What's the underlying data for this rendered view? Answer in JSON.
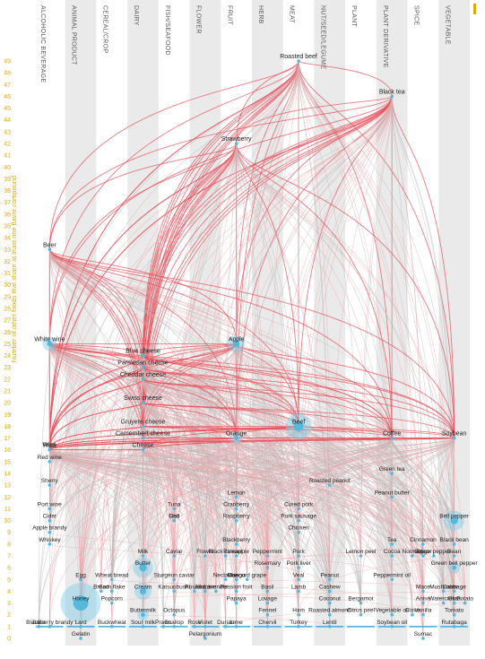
{
  "categories": [
    "ALCOHOLIC BEVERAGE",
    "ANIMAL PRODUCT",
    "CEREAL/CROP",
    "DAIRY",
    "FISH/SEAFOOD",
    "FLOWER",
    "FRUIT",
    "HERB",
    "MEAT",
    "NUT/SEED/LEGUME",
    "PLANT",
    "PLANT DERIVATIVE",
    "SPICE",
    "VEGETABLE"
  ],
  "y_axis_title": "Number of other foods that share at least one flavor compound",
  "y_ticks": [
    0,
    1,
    2,
    3,
    4,
    5,
    6,
    7,
    8,
    9,
    10,
    11,
    12,
    13,
    14,
    15,
    16,
    17,
    18,
    19,
    20,
    21,
    22,
    23,
    24,
    25,
    26,
    27,
    28,
    29,
    30,
    31,
    32,
    33,
    34,
    35,
    36,
    37,
    38,
    39,
    40,
    41,
    42,
    43,
    44,
    45,
    46,
    47,
    48,
    49
  ],
  "chart_data": {
    "type": "network",
    "y_range": [
      0,
      49
    ],
    "nodes": [
      {
        "name": "Roasted beef",
        "category": "MEAT",
        "value": 49,
        "size": 2
      },
      {
        "name": "Black tea",
        "category": "PLANT DERIVATIVE",
        "value": 46,
        "size": 2
      },
      {
        "name": "Strawberry",
        "category": "FRUIT",
        "value": 42,
        "size": 3
      },
      {
        "name": "Beer",
        "category": "ALCOHOLIC BEVERAGE",
        "value": 33,
        "size": 2
      },
      {
        "name": "White wine",
        "category": "ALCOHOLIC BEVERAGE",
        "value": 25,
        "size": 5
      },
      {
        "name": "Apple",
        "category": "FRUIT",
        "value": 25,
        "size": 6
      },
      {
        "name": "Blue cheese",
        "category": "DAIRY",
        "value": 24,
        "size": 2
      },
      {
        "name": "Parmesan cheese",
        "category": "DAIRY",
        "value": 23,
        "size": 2
      },
      {
        "name": "Cheddar cheese",
        "category": "DAIRY",
        "value": 22,
        "size": 3
      },
      {
        "name": "Swiss cheese",
        "category": "DAIRY",
        "value": 20,
        "size": 2
      },
      {
        "name": "Gruyere cheese",
        "category": "DAIRY",
        "value": 18,
        "size": 2
      },
      {
        "name": "Camembert cheese",
        "category": "DAIRY",
        "value": 17,
        "size": 2
      },
      {
        "name": "Cheese",
        "category": "DAIRY",
        "value": 16,
        "size": 2
      },
      {
        "name": "Beef",
        "category": "MEAT",
        "value": 18,
        "size": 9
      },
      {
        "name": "Coffee",
        "category": "PLANT DERIVATIVE",
        "value": 17,
        "size": 3
      },
      {
        "name": "Soybean",
        "category": "VEGETABLE",
        "value": 17,
        "size": 3
      },
      {
        "name": "Orange",
        "category": "FRUIT",
        "value": 17,
        "size": 4
      },
      {
        "name": "Wine",
        "category": "ALCOHOLIC BEVERAGE",
        "value": 16,
        "size": 2
      },
      {
        "name": "Rum",
        "category": "ALCOHOLIC BEVERAGE",
        "value": 16,
        "size": 2
      },
      {
        "name": "Red wine",
        "category": "ALCOHOLIC BEVERAGE",
        "value": 15,
        "size": 3
      },
      {
        "name": "Sherry",
        "category": "ALCOHOLIC BEVERAGE",
        "value": 13,
        "size": 2
      },
      {
        "name": "Green tea",
        "category": "PLANT DERIVATIVE",
        "value": 14,
        "size": 2
      },
      {
        "name": "Roasted peanut",
        "category": "NUT/SEED/LEGUME",
        "value": 13,
        "size": 2
      },
      {
        "name": "Peanut butter",
        "category": "PLANT DERIVATIVE",
        "value": 12,
        "size": 3
      },
      {
        "name": "Port wine",
        "category": "ALCOHOLIC BEVERAGE",
        "value": 11,
        "size": 2
      },
      {
        "name": "Cider",
        "category": "ALCOHOLIC BEVERAGE",
        "value": 10,
        "size": 2
      },
      {
        "name": "Apple brandy",
        "category": "ALCOHOLIC BEVERAGE",
        "value": 9,
        "size": 2
      },
      {
        "name": "Whiskey",
        "category": "ALCOHOLIC BEVERAGE",
        "value": 8,
        "size": 2
      },
      {
        "name": "Tuna",
        "category": "FISH/SEAFOOD",
        "value": 11,
        "size": 2
      },
      {
        "name": "Cod",
        "category": "FISH/SEAFOOD",
        "value": 10,
        "size": 2
      },
      {
        "name": "Fish",
        "category": "FISH/SEAFOOD",
        "value": 10,
        "size": 2
      },
      {
        "name": "Lemon",
        "category": "FRUIT",
        "value": 12,
        "size": 2
      },
      {
        "name": "Cranberry",
        "category": "FRUIT",
        "value": 11,
        "size": 2
      },
      {
        "name": "Raspberry",
        "category": "FRUIT",
        "value": 10,
        "size": 2
      },
      {
        "name": "Cured pork",
        "category": "MEAT",
        "value": 11,
        "size": 2
      },
      {
        "name": "Pork sausage",
        "category": "MEAT",
        "value": 10,
        "size": 2
      },
      {
        "name": "Chicken",
        "category": "MEAT",
        "value": 9,
        "size": 2
      },
      {
        "name": "Bell pepper",
        "category": "VEGETABLE",
        "value": 10,
        "size": 7
      },
      {
        "name": "Cinnamon",
        "category": "SPICE",
        "value": 8,
        "size": 2
      },
      {
        "name": "Black bean",
        "category": "VEGETABLE",
        "value": 8,
        "size": 2
      },
      {
        "name": "Tea",
        "category": "PLANT DERIVATIVE",
        "value": 8,
        "size": 2
      },
      {
        "name": "Cocoa",
        "category": "PLANT DERIVATIVE",
        "value": 7,
        "size": 2
      },
      {
        "name": "Lemon peel",
        "category": "PLANT",
        "value": 7,
        "size": 2
      },
      {
        "name": "Ginger",
        "category": "SPICE",
        "value": 7,
        "size": 2
      },
      {
        "name": "Nutmeg",
        "category": "SPICE",
        "value": 7,
        "size": 2
      },
      {
        "name": "Bean",
        "category": "VEGETABLE",
        "value": 7,
        "size": 2
      },
      {
        "name": "Black pepper",
        "category": "SPICE",
        "value": 7,
        "size": 2
      },
      {
        "name": "Green bell pepper",
        "category": "VEGETABLE",
        "value": 6,
        "size": 4
      },
      {
        "name": "Milk",
        "category": "DAIRY",
        "value": 7,
        "size": 3
      },
      {
        "name": "Blackberry",
        "category": "FRUIT",
        "value": 8,
        "size": 2
      },
      {
        "name": "Caviar",
        "category": "FISH/SEAFOOD",
        "value": 7,
        "size": 2
      },
      {
        "name": "Flower",
        "category": "FLOWER",
        "value": 7,
        "size": 2
      },
      {
        "name": "Pineapple",
        "category": "FRUIT",
        "value": 7,
        "size": 2
      },
      {
        "name": "Black currant",
        "category": "FRUIT",
        "value": 7,
        "size": 2
      },
      {
        "name": "Peppermint",
        "category": "HERB",
        "value": 7,
        "size": 2
      },
      {
        "name": "Pork",
        "category": "MEAT",
        "value": 7,
        "size": 2
      },
      {
        "name": "Rosemary",
        "category": "HERB",
        "value": 6,
        "size": 2
      },
      {
        "name": "Pork liver",
        "category": "MEAT",
        "value": 6,
        "size": 2
      },
      {
        "name": "Egg",
        "category": "ANIMAL PRODUCT",
        "value": 5,
        "size": 2
      },
      {
        "name": "Wheat bread",
        "category": "CEREAL/CROP",
        "value": 5,
        "size": 2
      },
      {
        "name": "Sturgeon caviar",
        "category": "FISH/SEAFOOD",
        "value": 5,
        "size": 2
      },
      {
        "name": "Jasmine",
        "category": "FLOWER",
        "value": 4,
        "size": 2
      },
      {
        "name": "Mango",
        "category": "FRUIT",
        "value": 5,
        "size": 2
      },
      {
        "name": "Nectarine",
        "category": "FRUIT",
        "value": 5,
        "size": 2
      },
      {
        "name": "Concord grape",
        "category": "FRUIT",
        "value": 5,
        "size": 2
      },
      {
        "name": "Veal",
        "category": "MEAT",
        "value": 5,
        "size": 2
      },
      {
        "name": "Peanut",
        "category": "NUT/SEED/LEGUME",
        "value": 5,
        "size": 2
      },
      {
        "name": "Peppermint oil",
        "category": "PLANT DERIVATIVE",
        "value": 5,
        "size": 2
      },
      {
        "name": "Honey",
        "category": "ANIMAL PRODUCT",
        "value": 3,
        "size": 14
      },
      {
        "name": "Corn flake",
        "category": "CEREAL/CROP",
        "value": 4,
        "size": 2
      },
      {
        "name": "Bread",
        "category": "CEREAL/CROP",
        "value": 4,
        "size": 2
      },
      {
        "name": "Popcorn",
        "category": "CEREAL/CROP",
        "value": 3,
        "size": 2
      },
      {
        "name": "Cream",
        "category": "DAIRY",
        "value": 4,
        "size": 6
      },
      {
        "name": "Butter",
        "category": "DAIRY",
        "value": 6,
        "size": 7
      },
      {
        "name": "Katsuobushi",
        "category": "FISH/SEAFOOD",
        "value": 4,
        "size": 2
      },
      {
        "name": "Roselle",
        "category": "FLOWER",
        "value": 4,
        "size": 2
      },
      {
        "name": "Lavender",
        "category": "FLOWER",
        "value": 4,
        "size": 2
      },
      {
        "name": "Passion fruit",
        "category": "FRUIT",
        "value": 4,
        "size": 2
      },
      {
        "name": "Basil",
        "category": "HERB",
        "value": 4,
        "size": 2
      },
      {
        "name": "Lamb",
        "category": "MEAT",
        "value": 4,
        "size": 2
      },
      {
        "name": "Cashew",
        "category": "NUT/SEED/LEGUME",
        "value": 4,
        "size": 2
      },
      {
        "name": "Mace",
        "category": "SPICE",
        "value": 4,
        "size": 2
      },
      {
        "name": "Cabbage",
        "category": "VEGETABLE",
        "value": 4,
        "size": 2
      },
      {
        "name": "Mushroom",
        "category": "VEGETABLE",
        "value": 4,
        "size": 2
      },
      {
        "name": "Buttermilk",
        "category": "DAIRY",
        "value": 2,
        "size": 4
      },
      {
        "name": "Bergamot",
        "category": "PLANT",
        "value": 3,
        "size": 2
      },
      {
        "name": "Papaya",
        "category": "FRUIT",
        "value": 3,
        "size": 2
      },
      {
        "name": "Okra",
        "category": "VEGETABLE",
        "value": 3,
        "size": 2
      },
      {
        "name": "Lovage",
        "category": "HERB",
        "value": 3,
        "size": 2
      },
      {
        "name": "Coconut",
        "category": "NUT/SEED/LEGUME",
        "value": 3,
        "size": 2
      },
      {
        "name": "Anise",
        "category": "SPICE",
        "value": 3,
        "size": 2
      },
      {
        "name": "Watercress",
        "category": "VEGETABLE",
        "value": 3,
        "size": 2
      },
      {
        "name": "Potato",
        "category": "VEGETABLE",
        "value": 3,
        "size": 2
      },
      {
        "name": "Citrus peel",
        "category": "PLANT",
        "value": 2,
        "size": 2
      },
      {
        "name": "Vanilla",
        "category": "SPICE",
        "value": 2,
        "size": 2
      },
      {
        "name": "Ham",
        "category": "MEAT",
        "value": 2,
        "size": 2
      },
      {
        "name": "Fennel",
        "category": "HERB",
        "value": 2,
        "size": 2
      },
      {
        "name": "Roasted almond",
        "category": "NUT/SEED/LEGUME",
        "value": 2,
        "size": 2
      },
      {
        "name": "Vegetable oil",
        "category": "PLANT DERIVATIVE",
        "value": 2,
        "size": 2
      },
      {
        "name": "Clove",
        "category": "SPICE",
        "value": 2,
        "size": 2
      },
      {
        "name": "Tomato",
        "category": "VEGETABLE",
        "value": 2,
        "size": 2
      },
      {
        "name": "Octopus",
        "category": "FISH/SEAFOOD",
        "value": 2,
        "size": 2
      },
      {
        "name": "Lard",
        "category": "ANIMAL PRODUCT",
        "value": 1,
        "size": 2
      },
      {
        "name": "Gelatin",
        "category": "ANIMAL PRODUCT",
        "value": 0,
        "size": 2
      },
      {
        "name": "Blackberry brandy",
        "category": "ALCOHOLIC BEVERAGE",
        "value": 1,
        "size": 2
      },
      {
        "name": "Sake",
        "category": "ALCOHOLIC BEVERAGE",
        "value": 1,
        "size": 2
      },
      {
        "name": "Buckwheat",
        "category": "CEREAL/CROP",
        "value": 1,
        "size": 2
      },
      {
        "name": "Sour milk",
        "category": "DAIRY",
        "value": 1,
        "size": 2
      },
      {
        "name": "Scallop",
        "category": "FISH/SEAFOOD",
        "value": 1,
        "size": 2
      },
      {
        "name": "Prawn",
        "category": "FISH/SEAFOOD",
        "value": 1,
        "size": 2
      },
      {
        "name": "Violet",
        "category": "FLOWER",
        "value": 1,
        "size": 2
      },
      {
        "name": "Lime",
        "category": "FRUIT",
        "value": 1,
        "size": 2
      },
      {
        "name": "Durian",
        "category": "FRUIT",
        "value": 1,
        "size": 2
      },
      {
        "name": "Chervil",
        "category": "HERB",
        "value": 1,
        "size": 2
      },
      {
        "name": "Turkey",
        "category": "MEAT",
        "value": 1,
        "size": 2
      },
      {
        "name": "Lentil",
        "category": "NUT/SEED/LEGUME",
        "value": 1,
        "size": 2
      },
      {
        "name": "Rose",
        "category": "FLOWER",
        "value": 1,
        "size": 2
      },
      {
        "name": "Soybean oil",
        "category": "PLANT DERIVATIVE",
        "value": 1,
        "size": 2
      },
      {
        "name": "Sumac",
        "category": "SPICE",
        "value": 0,
        "size": 2
      },
      {
        "name": "Rutabaga",
        "category": "VEGETABLE",
        "value": 1,
        "size": 2
      },
      {
        "name": "Pelargonium",
        "category": "FLOWER",
        "value": 0,
        "size": 2
      }
    ],
    "legend": "none",
    "grid": "column bands"
  }
}
